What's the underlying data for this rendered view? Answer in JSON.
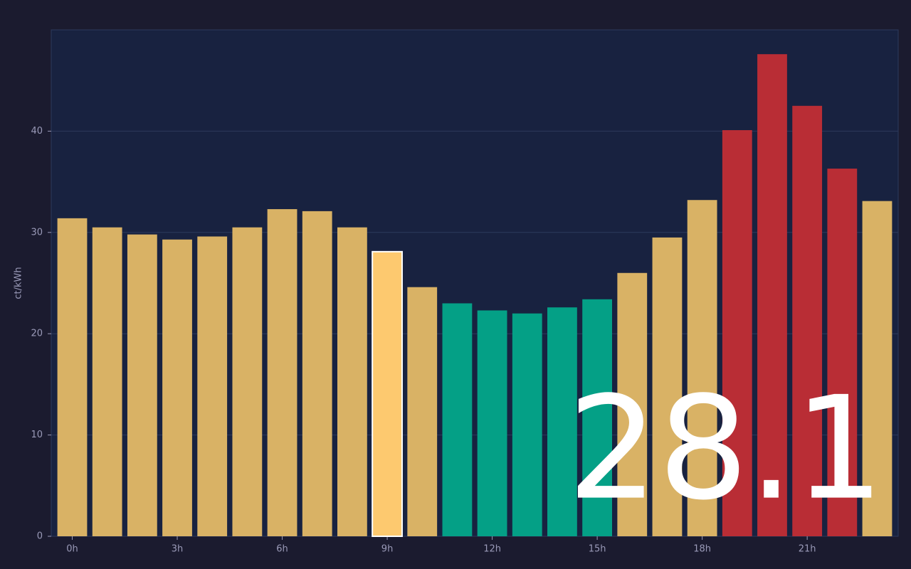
{
  "chart_data": {
    "type": "bar",
    "y_label": "ct/kWh",
    "x": [
      0,
      1,
      2,
      3,
      4,
      5,
      6,
      7,
      8,
      9,
      10,
      11,
      12,
      13,
      14,
      15,
      16,
      17,
      18,
      19,
      20,
      21,
      22,
      23
    ],
    "values": [
      31.4,
      30.5,
      29.8,
      29.3,
      29.6,
      30.5,
      32.3,
      32.1,
      30.5,
      28.1,
      24.6,
      23.0,
      22.3,
      22.0,
      22.6,
      23.4,
      26.0,
      29.5,
      33.2,
      40.1,
      47.6,
      42.5,
      36.3,
      33.1
    ],
    "colors": [
      "#d9b265",
      "#d9b265",
      "#d9b265",
      "#d9b265",
      "#d9b265",
      "#d9b265",
      "#d9b265",
      "#d9b265",
      "#d9b265",
      "#fdc96f",
      "#d9b265",
      "#04a086",
      "#04a086",
      "#04a086",
      "#04a086",
      "#04a086",
      "#d9b265",
      "#d9b265",
      "#d9b265",
      "#b92d35",
      "#b92d35",
      "#b92d35",
      "#b92d35",
      "#d9b265"
    ],
    "highlight": 9,
    "annotation": "28.1",
    "xlim": [
      -0.6,
      23.6
    ],
    "xticks": [
      {
        "value": 0,
        "label": "0h"
      },
      {
        "value": 3,
        "label": "3h"
      },
      {
        "value": 6,
        "label": "6h"
      },
      {
        "value": 9,
        "label": "9h"
      },
      {
        "value": 12,
        "label": "12h"
      },
      {
        "value": 15,
        "label": "15h"
      },
      {
        "value": 18,
        "label": "18h"
      },
      {
        "value": 21,
        "label": "21h"
      }
    ],
    "ylim": [
      0,
      50
    ],
    "yticks": [
      0,
      10,
      20,
      30,
      40
    ],
    "grid": true
  }
}
